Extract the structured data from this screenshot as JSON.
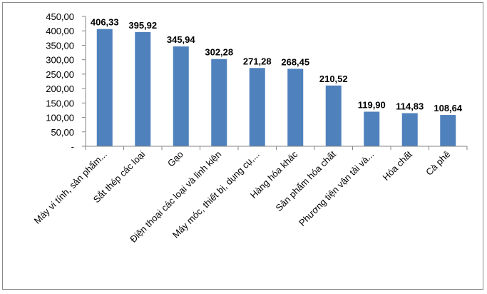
{
  "chart_data": {
    "type": "bar",
    "categories": [
      "Máy vi tính, sản phẩm...",
      "Sắt thép các loại",
      "Gạo",
      "Điện thoại các loại và linh kiện",
      "Máy móc, thiết bị, dụng cụ,...",
      "Hàng hóa khác",
      "Sản phẩm hóa chất",
      "Phương tiện vận tải và...",
      "Hóa chất",
      "Cà phê"
    ],
    "values": [
      406.33,
      395.92,
      345.94,
      302.28,
      271.28,
      268.45,
      210.52,
      119.9,
      114.83,
      108.64
    ],
    "data_labels": [
      "406,33",
      "395,92",
      "345,94",
      "302,28",
      "271,28",
      "268,45",
      "210,52",
      "119,90",
      "114,83",
      "108,64"
    ],
    "yticks": [
      "-",
      "50,00",
      "100,00",
      "150,00",
      "200,00",
      "250,00",
      "300,00",
      "350,00",
      "400,00",
      "450,00"
    ],
    "ylim": [
      0,
      450
    ],
    "bar_color": "#4f81bd",
    "title": "",
    "xlabel": "",
    "ylabel": "",
    "grid": false,
    "legend": "none"
  }
}
